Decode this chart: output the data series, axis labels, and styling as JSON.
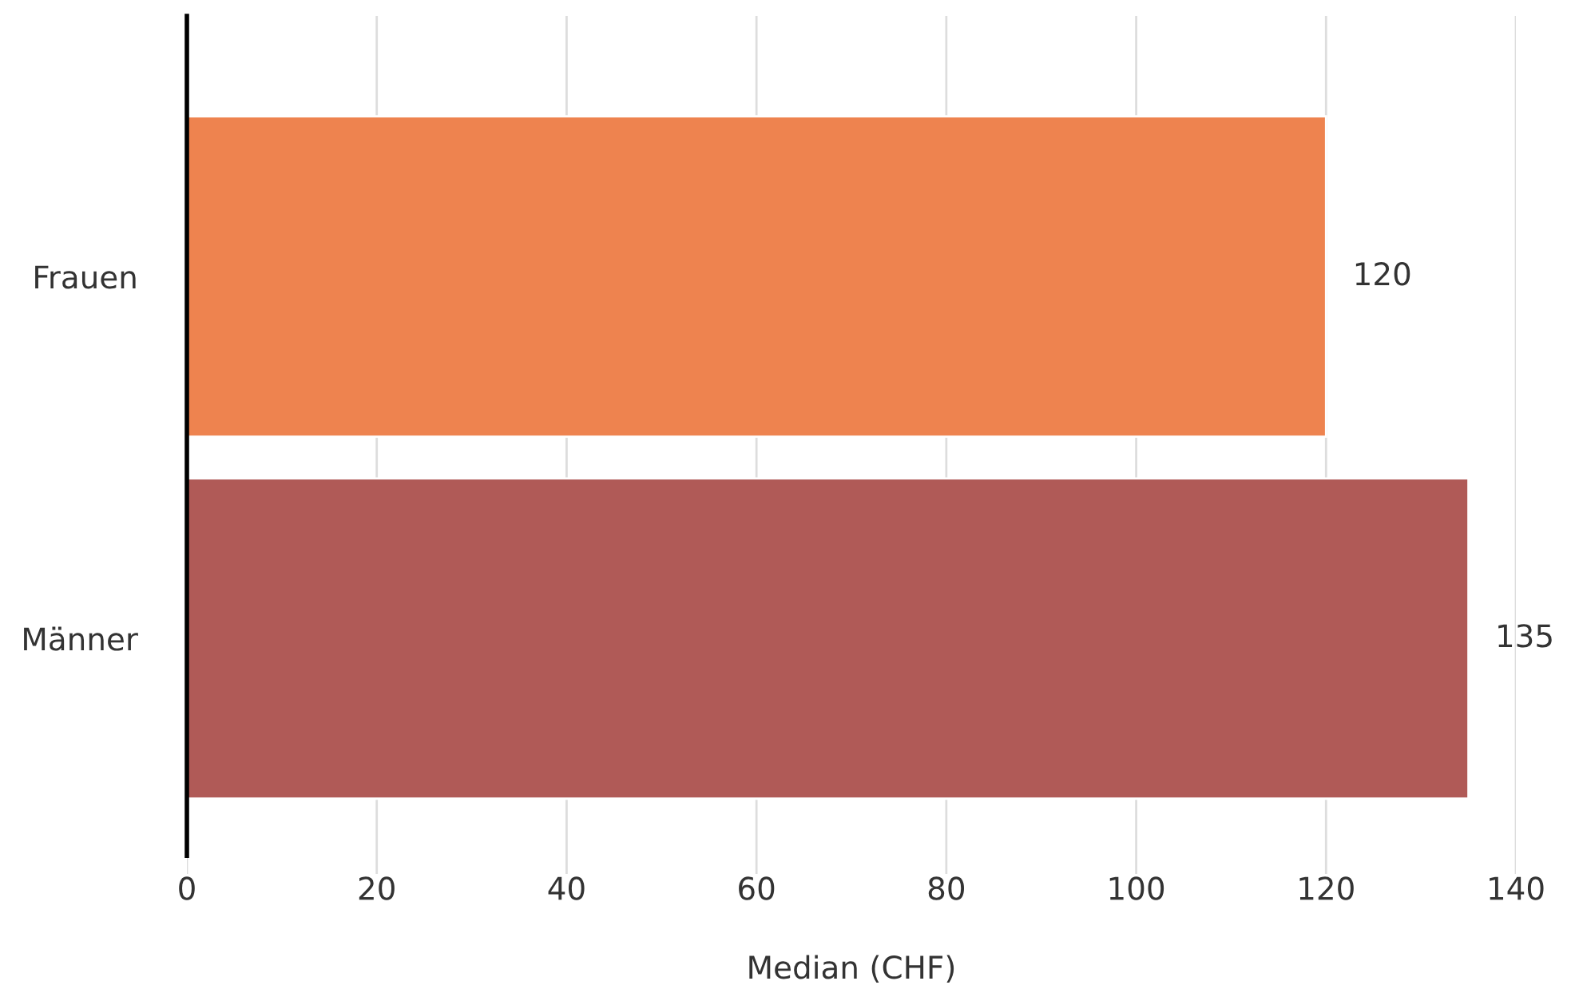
{
  "chart_data": {
    "type": "bar",
    "orientation": "horizontal",
    "xlabel": "Median (CHF)",
    "categories": [
      "Frauen",
      "Männer"
    ],
    "values": [
      120,
      135
    ],
    "colors": [
      "#ee834f",
      "#b05a57"
    ],
    "xlim": [
      0,
      140
    ],
    "xticks": [
      0,
      20,
      40,
      60,
      80,
      100,
      120,
      140
    ],
    "grid": "x",
    "data_labels": true
  }
}
